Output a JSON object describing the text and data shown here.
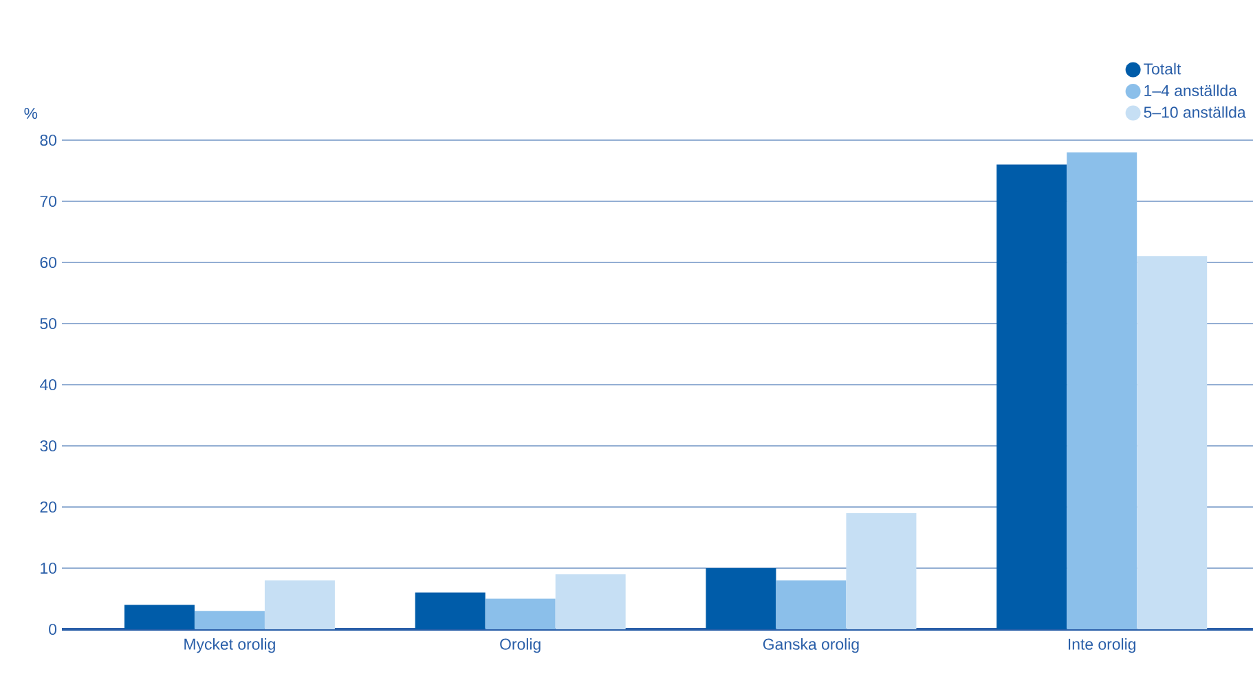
{
  "chart_data": {
    "type": "bar",
    "ylabel": "%",
    "categories": [
      "Mycket orolig",
      "Orolig",
      "Ganska orolig",
      "Inte orolig"
    ],
    "series": [
      {
        "name": "Totalt",
        "color": "#005ca9",
        "values": [
          4,
          6,
          10,
          76
        ]
      },
      {
        "name": "1–4 anställda",
        "color": "#8bbfea",
        "values": [
          3,
          5,
          8,
          78
        ]
      },
      {
        "name": "5–10 anställda",
        "color": "#c6dff4",
        "values": [
          8,
          9,
          19,
          61
        ]
      }
    ],
    "ylim": [
      0,
      80
    ],
    "yticks": [
      0,
      10,
      20,
      30,
      40,
      50,
      60,
      70,
      80
    ],
    "grid": "y",
    "legend": "top right"
  }
}
